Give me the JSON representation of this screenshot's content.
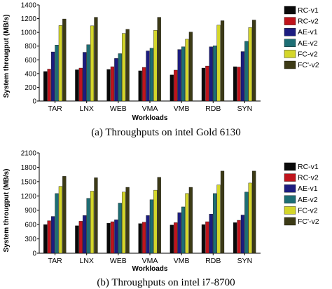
{
  "colors": {
    "RC-v1": "#0a0a0a",
    "RC-v2": "#c0141c",
    "AE-v1": "#1c1c80",
    "AE-v2": "#1d6e74",
    "FC-v2": "#d4d62a",
    "FC'-v2": "#3c3a16"
  },
  "chart_data": [
    {
      "type": "bar",
      "caption": "(a) Throughputs on intel Gold 6130",
      "xlabel": "Workloads",
      "ylabel": "System througput (MB/s)",
      "ylim": [
        0,
        1400
      ],
      "yticks": [
        0,
        200,
        400,
        600,
        800,
        1000,
        1200,
        1400
      ],
      "grid": false,
      "legend_position": "right",
      "categories": [
        "TAR",
        "LNX",
        "WEB",
        "VMA",
        "VMB",
        "RDB",
        "SYN"
      ],
      "series": [
        {
          "name": "RC-v1",
          "values": [
            430,
            455,
            460,
            440,
            380,
            480,
            500
          ]
        },
        {
          "name": "RC-v2",
          "values": [
            465,
            480,
            500,
            490,
            450,
            510,
            495
          ]
        },
        {
          "name": "AE-v1",
          "values": [
            715,
            710,
            620,
            730,
            750,
            790,
            720
          ]
        },
        {
          "name": "AE-v2",
          "values": [
            815,
            820,
            690,
            770,
            790,
            805,
            870
          ]
        },
        {
          "name": "FC-v2",
          "values": [
            1100,
            1095,
            985,
            1030,
            900,
            1105,
            1070
          ]
        },
        {
          "name": "FC'-v2",
          "values": [
            1195,
            1220,
            1045,
            1220,
            1005,
            1170,
            1180
          ]
        }
      ]
    },
    {
      "type": "bar",
      "caption": "(b) Throughputs on intel i7-8700",
      "xlabel": "Workloads",
      "ylabel": "System througput (MB/s)",
      "ylim": [
        0,
        2100
      ],
      "yticks": [
        0,
        300,
        600,
        900,
        1200,
        1500,
        1800,
        2100
      ],
      "grid": false,
      "legend_position": "right",
      "categories": [
        "TAR",
        "LNX",
        "WEB",
        "VMA",
        "VMB",
        "RDB",
        "SYN"
      ],
      "series": [
        {
          "name": "RC-v1",
          "values": [
            600,
            575,
            630,
            620,
            590,
            600,
            640
          ]
        },
        {
          "name": "RC-v2",
          "values": [
            680,
            670,
            660,
            650,
            640,
            660,
            690
          ]
        },
        {
          "name": "AE-v1",
          "values": [
            770,
            790,
            700,
            790,
            850,
            820,
            800
          ]
        },
        {
          "name": "AE-v2",
          "values": [
            1250,
            1150,
            1050,
            1120,
            970,
            1250,
            1280
          ]
        },
        {
          "name": "FC-v2",
          "values": [
            1400,
            1300,
            1280,
            1320,
            1250,
            1430,
            1470
          ]
        },
        {
          "name": "FC'-v2",
          "values": [
            1610,
            1580,
            1380,
            1590,
            1380,
            1720,
            1720
          ]
        }
      ]
    }
  ]
}
